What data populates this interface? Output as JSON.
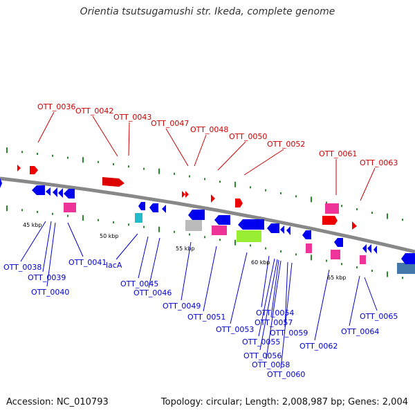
{
  "title": "Orientia tsutsugamushi str. Ikeda, complete genome",
  "footer": {
    "accession": "Accession: NC_010793",
    "topology": "Topology: circular; Length: 2,008,987 bp; Genes: 2,004"
  },
  "colors": {
    "forward_label": "#cc0000",
    "reverse_label": "#0000cc",
    "backbone": "#777777",
    "tick": "#2a8a2a"
  },
  "scale_labels": [
    "45 kbp",
    "50 kbp",
    "55 kbp",
    "60 kbp",
    "65 kbp"
  ],
  "forward_labels": [
    "OTT_0036",
    "OTT_0042",
    "OTT_0043",
    "OTT_0047",
    "OTT_0048",
    "OTT_0050",
    "OTT_0052",
    "OTT_0061",
    "OTT_0063"
  ],
  "reverse_labels": [
    "OTT_0038",
    "OTT_0039",
    "OTT_0040",
    "OTT_0041",
    "lacA",
    "OTT_0045",
    "OTT_0046",
    "OTT_0049",
    "OTT_0051",
    "OTT_0053",
    "OTT_0054",
    "OTT_0055",
    "OTT_0056",
    "OTT_0057",
    "OTT_0058",
    "OTT_0059",
    "OTT_0060",
    "OTT_0062",
    "OTT_0064",
    "OTT_0065"
  ]
}
